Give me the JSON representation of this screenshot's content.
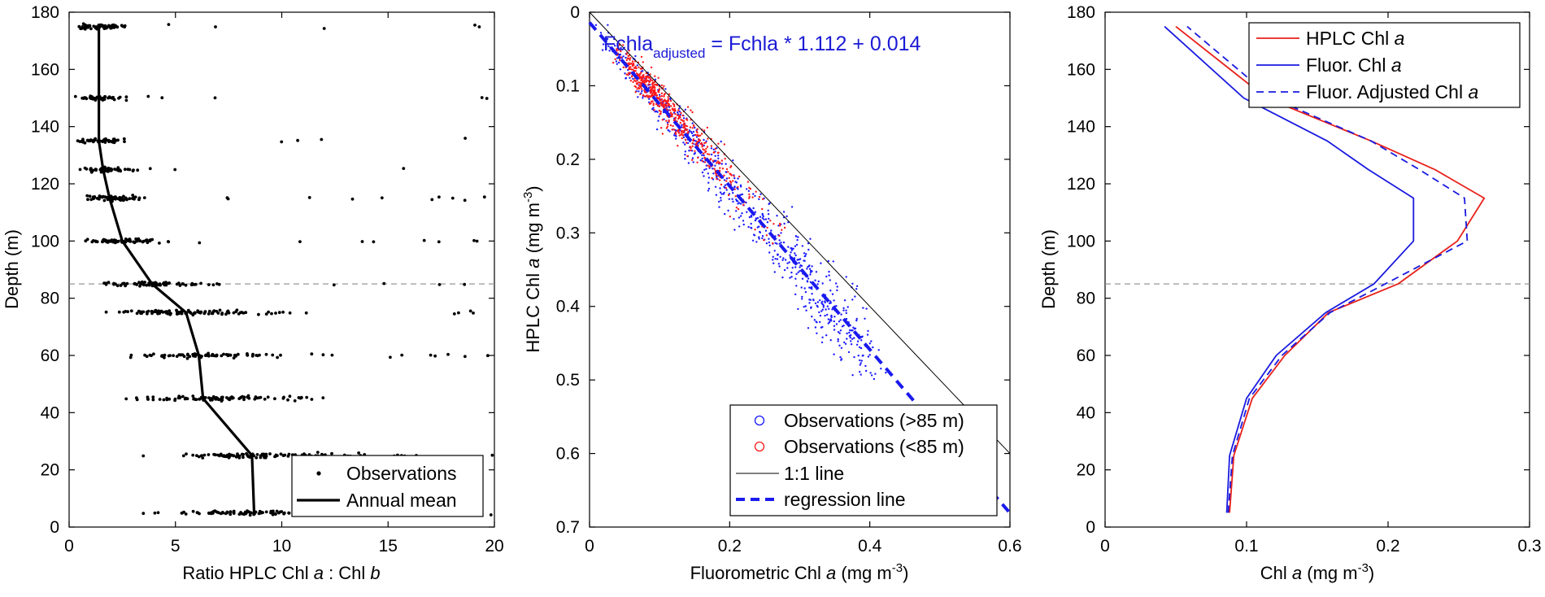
{
  "chart_data": [
    {
      "type": "scatter",
      "title": "",
      "xlabel": "Ratio HPLC Chl a : Chl b",
      "ylabel": "Depth (m)",
      "xlim": [
        0,
        20
      ],
      "ylim": [
        180,
        0
      ],
      "xticks": [
        "0",
        "5",
        "10",
        "15",
        "20"
      ],
      "yticks": [
        "0",
        "20",
        "40",
        "60",
        "80",
        "100",
        "120",
        "140",
        "160",
        "180"
      ],
      "reference_depth": 85,
      "observation_depths": [
        5,
        25,
        45,
        60,
        75,
        85,
        100,
        115,
        125,
        135,
        150,
        175
      ],
      "series": [
        {
          "name": "Observations",
          "style": "points",
          "color": "#000000"
        },
        {
          "name": "Annual mean",
          "style": "line",
          "color": "#000000",
          "x": [
            8.7,
            8.6,
            6.3,
            6.1,
            5.5,
            3.9,
            2.5,
            1.9,
            1.6,
            1.4,
            1.4,
            1.4
          ],
          "y": [
            5,
            25,
            45,
            60,
            75,
            85,
            100,
            115,
            125,
            135,
            150,
            175
          ]
        }
      ],
      "legend": {
        "position": "bottom-right",
        "items": [
          "Observations",
          "Annual mean"
        ]
      }
    },
    {
      "type": "scatter",
      "title": "",
      "xlabel": "Fluorometric Chl a (mg m-3)",
      "ylabel": "HPLC Chl a (mg m-3)",
      "xlim": [
        0,
        0.6
      ],
      "ylim": [
        0,
        0.7
      ],
      "xticks": [
        "0",
        "0.2",
        "0.4",
        "0.6"
      ],
      "yticks": [
        "0",
        "0.1",
        "0.2",
        "0.3",
        "0.4",
        "0.5",
        "0.6",
        "0.7"
      ],
      "equation": "Fchla_adjusted = Fchla * 1.112 + 0.014",
      "series": [
        {
          "name": "Observations (>85 m)",
          "style": "points",
          "color": "#1a1aff"
        },
        {
          "name": "Observations (<85 m)",
          "style": "points",
          "color": "#ff1a1a"
        },
        {
          "name": "1:1 line",
          "style": "line",
          "color": "#000000",
          "x": [
            0,
            0.6
          ],
          "y": [
            0,
            0.6
          ]
        },
        {
          "name": "regression line",
          "style": "dashed",
          "color": "#1a1aee",
          "x": [
            0,
            0.6
          ],
          "y": [
            0.014,
            0.681
          ]
        }
      ],
      "legend": {
        "position": "bottom-right",
        "items": [
          "Observations (>85 m)",
          "Observations (<85 m)",
          "1:1 line",
          "regression line"
        ]
      }
    },
    {
      "type": "line",
      "title": "",
      "xlabel": "Chl a (mg m-3)",
      "ylabel": "Depth (m)",
      "xlim": [
        0,
        0.3
      ],
      "ylim": [
        180,
        0
      ],
      "xticks": [
        "0",
        "0.1",
        "0.2",
        "0.3"
      ],
      "yticks": [
        "0",
        "20",
        "40",
        "60",
        "80",
        "100",
        "120",
        "140",
        "160",
        "180"
      ],
      "reference_depth": 85,
      "series": [
        {
          "name": "HPLC Chl a",
          "style": "solid",
          "color": "#e8201a",
          "x": [
            0.088,
            0.091,
            0.104,
            0.127,
            0.158,
            0.207,
            0.249,
            0.268,
            0.233,
            0.188,
            0.114,
            0.05
          ],
          "y": [
            5,
            25,
            45,
            60,
            75,
            85,
            100,
            115,
            125,
            135,
            150,
            175
          ]
        },
        {
          "name": "Fluor. Chl a",
          "style": "solid",
          "color": "#1a1ae0",
          "x": [
            0.086,
            0.088,
            0.1,
            0.121,
            0.156,
            0.19,
            0.218,
            0.218,
            0.186,
            0.157,
            0.098,
            0.042
          ],
          "y": [
            5,
            25,
            45,
            60,
            75,
            85,
            100,
            115,
            125,
            135,
            150,
            175
          ]
        },
        {
          "name": "Fluor. Adjusted Chl a",
          "style": "dashed",
          "color": "#1a1ae0",
          "x": [
            0.087,
            0.09,
            0.102,
            0.125,
            0.159,
            0.198,
            0.256,
            0.254,
            0.222,
            0.188,
            0.118,
            0.058
          ],
          "y": [
            5,
            25,
            45,
            60,
            75,
            85,
            100,
            115,
            125,
            135,
            150,
            175
          ]
        }
      ],
      "legend": {
        "position": "top-right",
        "items": [
          "HPLC Chl a",
          "Fluor. Chl a",
          "Fluor. Adjusted Chl a"
        ]
      }
    }
  ],
  "panels": [
    {
      "xlabel": {
        "pre": "Ratio HPLC Chl ",
        "ital": "a",
        "post": " : Chl ",
        "ital2": "b"
      },
      "ylabel": "Depth (m)",
      "legend": [
        {
          "pre": "Observations"
        },
        {
          "pre": "Annual mean"
        }
      ]
    },
    {
      "xlabel": {
        "pre": "Fluorometric Chl ",
        "ital": "a",
        "post": " (mg m",
        "sup": "-3",
        "end": ")"
      },
      "ylabel": {
        "pre": "HPLC Chl ",
        "ital": "a",
        "post": " (mg m",
        "sup": "-3",
        "end": ")"
      },
      "equation": {
        "pre": "Fchla",
        "sub": "adjusted",
        "post": " = Fchla * 1.112 + 0.014"
      },
      "legend": [
        {
          "pre": "Observations (>85 m)"
        },
        {
          "pre": "Observations (<85 m)"
        },
        {
          "pre": "1:1 line"
        },
        {
          "pre": "regression line"
        }
      ]
    },
    {
      "xlabel": {
        "pre": "Chl ",
        "ital": "a",
        "post": " (mg m",
        "sup": "-3",
        "end": ")"
      },
      "ylabel": "Depth (m)",
      "legend": [
        {
          "pre": "HPLC Chl ",
          "ital": "a"
        },
        {
          "pre": "Fluor. Chl ",
          "ital": "a"
        },
        {
          "pre": "Fluor. Adjusted Chl ",
          "ital": "a"
        }
      ]
    }
  ]
}
